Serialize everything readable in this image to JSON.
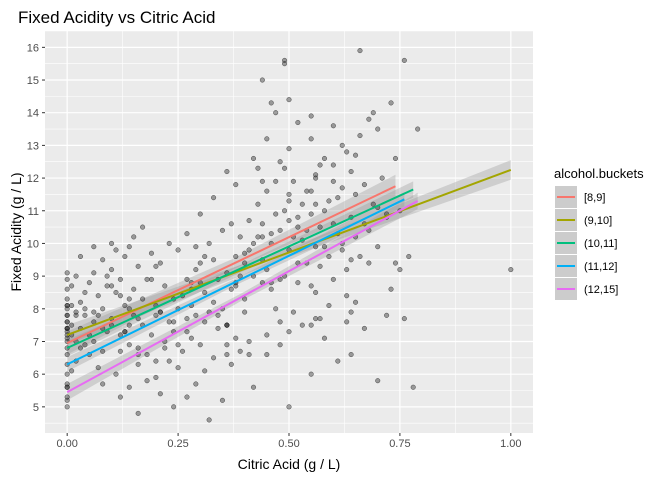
{
  "chart_data": {
    "type": "scatter",
    "title": "Fixed Acidity vs Citric Acid",
    "xlabel": "Citric Acid (g / L)",
    "ylabel": "Fixed Acidity (g / L)",
    "xlim": [
      -0.05,
      1.05
    ],
    "ylim": [
      4.2,
      16.5
    ],
    "x_ticks": [
      0.0,
      0.25,
      0.5,
      0.75,
      1.0
    ],
    "x_tick_labels": [
      "0.00",
      "0.25",
      "0.50",
      "0.75",
      "1.00"
    ],
    "y_ticks": [
      5,
      6,
      7,
      8,
      9,
      10,
      11,
      12,
      13,
      14,
      15,
      16
    ],
    "y_tick_labels": [
      "5",
      "6",
      "7",
      "8",
      "9",
      "10",
      "11",
      "12",
      "13",
      "14",
      "15",
      "16"
    ],
    "grid": true,
    "background": "#ebebeb",
    "point_color": "#333333",
    "legend": {
      "title": "alcohol.buckets",
      "position": "right"
    },
    "series": [
      {
        "name": "[8,9]",
        "color": "#F8766D",
        "fit": {
          "x": [
            0.0,
            0.74
          ],
          "y": [
            6.95,
            11.75
          ]
        },
        "band": 0.35
      },
      {
        "name": "(9,10]",
        "color": "#A3A500",
        "fit": {
          "x": [
            0.0,
            1.0
          ],
          "y": [
            7.2,
            12.25
          ]
        },
        "band": 0.3
      },
      {
        "name": "(10,11]",
        "color": "#00BF7D",
        "fit": {
          "x": [
            0.0,
            0.78
          ],
          "y": [
            6.8,
            11.65
          ]
        },
        "band": 0.25
      },
      {
        "name": "(11,12]",
        "color": "#00B0F6",
        "fit": {
          "x": [
            0.0,
            0.76
          ],
          "y": [
            6.3,
            11.35
          ]
        },
        "band": 0.22
      },
      {
        "name": "(12,15]",
        "color": "#E76BF3",
        "fit": {
          "x": [
            0.0,
            0.79
          ],
          "y": [
            5.45,
            11.3
          ]
        },
        "band": 0.25
      }
    ],
    "points": [
      [
        0.0,
        7.4
      ],
      [
        0.0,
        7.8
      ],
      [
        0.04,
        7.8
      ],
      [
        0.56,
        11.2
      ],
      [
        0.0,
        7.4
      ],
      [
        0.0,
        7.4
      ],
      [
        0.06,
        7.9
      ],
      [
        0.0,
        7.3
      ],
      [
        0.02,
        7.8
      ],
      [
        0.36,
        7.5
      ],
      [
        0.08,
        6.7
      ],
      [
        0.36,
        7.5
      ],
      [
        0.0,
        5.6
      ],
      [
        0.29,
        7.8
      ],
      [
        0.18,
        8.9
      ],
      [
        0.19,
        8.9
      ],
      [
        0.56,
        8.5
      ],
      [
        0.28,
        8.1
      ],
      [
        0.08,
        7.4
      ],
      [
        0.51,
        7.9
      ],
      [
        0.48,
        8.9
      ],
      [
        0.31,
        7.6
      ],
      [
        0.21,
        7.9
      ],
      [
        0.11,
        8.5
      ],
      [
        0.14,
        6.9
      ],
      [
        0.16,
        6.3
      ],
      [
        0.24,
        7.6
      ],
      [
        0.21,
        7.9
      ],
      [
        0.0,
        7.1
      ],
      [
        0.07,
        7.8
      ],
      [
        0.12,
        6.7
      ],
      [
        0.25,
        6.9
      ],
      [
        0.14,
        8.3
      ],
      [
        0.36,
        6.9
      ],
      [
        0.0,
        5.2
      ],
      [
        0.2,
        7.8
      ],
      [
        0.34,
        7.8
      ],
      [
        0.0,
        8.1
      ],
      [
        0.0,
        5.7
      ],
      [
        0.13,
        7.3
      ],
      [
        0.13,
        7.3
      ],
      [
        0.46,
        8.8
      ],
      [
        0.53,
        7.5
      ],
      [
        0.0,
        8.1
      ],
      [
        0.16,
        6.8
      ],
      [
        0.32,
        4.6
      ],
      [
        0.16,
        7.7
      ],
      [
        0.09,
        8.7
      ],
      [
        0.2,
        6.4
      ],
      [
        0.42,
        5.6
      ],
      [
        0.52,
        8.8
      ],
      [
        0.41,
        6.6
      ],
      [
        0.16,
        6.6
      ],
      [
        0.28,
        8.6
      ],
      [
        0.0,
        7.6
      ],
      [
        0.57,
        7.7
      ],
      [
        0.44,
        10.2
      ],
      [
        0.1,
        7.5
      ],
      [
        0.0,
        7.8
      ],
      [
        0.27,
        7.3
      ],
      [
        0.3,
        8.8
      ],
      [
        0.1,
        7.7
      ],
      [
        0.14,
        7.5
      ],
      [
        0.06,
        7.0
      ],
      [
        0.0,
        7.2
      ],
      [
        0.12,
        7.2
      ],
      [
        0.36,
        7.5
      ],
      [
        0.36,
        6.6
      ],
      [
        0.2,
        9.3
      ],
      [
        0.14,
        8.0
      ],
      [
        0.56,
        7.7
      ],
      [
        0.27,
        7.7
      ],
      [
        0.24,
        8.3
      ],
      [
        0.4,
        7.9
      ],
      [
        0.38,
        7.1
      ],
      [
        0.38,
        8.7
      ],
      [
        0.38,
        8.8
      ],
      [
        0.44,
        8.8
      ],
      [
        0.22,
        6.8
      ],
      [
        0.01,
        8.1
      ],
      [
        0.17,
        10.5
      ],
      [
        0.43,
        12.3
      ],
      [
        0.52,
        10.5
      ],
      [
        0.5,
        11.5
      ],
      [
        0.46,
        10.3
      ],
      [
        0.42,
        10.0
      ],
      [
        0.4,
        9.7
      ],
      [
        0.3,
        9.4
      ],
      [
        0.49,
        11.0
      ],
      [
        0.55,
        11.6
      ],
      [
        0.47,
        10.9
      ],
      [
        0.54,
        10.4
      ],
      [
        0.44,
        11.9
      ],
      [
        0.56,
        12.0
      ],
      [
        0.48,
        12.5
      ],
      [
        0.5,
        11.3
      ],
      [
        0.58,
        12.6
      ],
      [
        0.65,
        12.7
      ],
      [
        0.62,
        13.0
      ],
      [
        0.66,
        13.3
      ],
      [
        0.63,
        12.8
      ],
      [
        0.64,
        12.2
      ],
      [
        0.55,
        13.2
      ],
      [
        0.52,
        13.7
      ],
      [
        0.5,
        12.9
      ],
      [
        0.57,
        12.4
      ],
      [
        0.6,
        11.9
      ],
      [
        0.49,
        15.6
      ],
      [
        0.49,
        15.5
      ],
      [
        0.44,
        15.0
      ],
      [
        0.66,
        15.9
      ],
      [
        0.76,
        15.6
      ],
      [
        0.73,
        14.3
      ],
      [
        0.7,
        13.5
      ],
      [
        0.79,
        13.5
      ],
      [
        0.68,
        13.8
      ],
      [
        0.69,
        14.0
      ],
      [
        0.46,
        14.3
      ],
      [
        0.67,
        11.8
      ],
      [
        0.7,
        11.1
      ],
      [
        0.72,
        10.9
      ],
      [
        0.65,
        10.2
      ],
      [
        0.62,
        9.8
      ],
      [
        0.59,
        9.6
      ],
      [
        0.63,
        9.2
      ],
      [
        0.68,
        9.4
      ],
      [
        0.6,
        8.9
      ],
      [
        0.64,
        7.9
      ],
      [
        0.67,
        7.4
      ],
      [
        0.7,
        5.8
      ],
      [
        0.64,
        6.6
      ],
      [
        0.58,
        7.1
      ],
      [
        0.61,
        6.4
      ],
      [
        0.55,
        6.0
      ],
      [
        0.5,
        5.0
      ],
      [
        0.48,
        6.9
      ],
      [
        0.45,
        7.2
      ],
      [
        0.39,
        6.7
      ],
      [
        0.35,
        5.2
      ],
      [
        0.31,
        6.1
      ],
      [
        0.27,
        5.3
      ],
      [
        0.24,
        5.0
      ],
      [
        0.21,
        5.4
      ],
      [
        0.18,
        5.8
      ],
      [
        0.14,
        5.6
      ],
      [
        0.11,
        6.0
      ],
      [
        0.07,
        6.2
      ],
      [
        0.05,
        6.6
      ],
      [
        0.03,
        6.8
      ],
      [
        0.02,
        7.0
      ],
      [
        0.01,
        7.2
      ],
      [
        0.01,
        7.5
      ],
      [
        0.02,
        7.9
      ],
      [
        0.03,
        8.2
      ],
      [
        0.04,
        8.5
      ],
      [
        0.05,
        8.8
      ],
      [
        0.06,
        9.1
      ],
      [
        0.08,
        9.5
      ],
      [
        0.09,
        9.0
      ],
      [
        0.1,
        8.7
      ],
      [
        0.12,
        8.4
      ],
      [
        0.13,
        8.1
      ],
      [
        0.15,
        7.8
      ],
      [
        0.17,
        7.5
      ],
      [
        0.19,
        7.2
      ],
      [
        0.22,
        7.0
      ],
      [
        0.23,
        7.6
      ],
      [
        0.25,
        8.0
      ],
      [
        0.26,
        8.4
      ],
      [
        0.28,
        8.8
      ],
      [
        0.29,
        9.2
      ],
      [
        0.31,
        9.6
      ],
      [
        0.32,
        10.0
      ],
      [
        0.33,
        8.2
      ],
      [
        0.34,
        7.4
      ],
      [
        0.35,
        8.0
      ],
      [
        0.37,
        8.6
      ],
      [
        0.39,
        9.0
      ],
      [
        0.4,
        9.4
      ],
      [
        0.41,
        9.8
      ],
      [
        0.43,
        10.2
      ],
      [
        0.44,
        10.6
      ],
      [
        0.45,
        9.2
      ],
      [
        0.46,
        8.6
      ],
      [
        0.47,
        8.0
      ],
      [
        0.48,
        7.6
      ],
      [
        0.49,
        9.0
      ],
      [
        0.5,
        9.8
      ],
      [
        0.51,
        10.2
      ],
      [
        0.52,
        10.8
      ],
      [
        0.53,
        11.2
      ],
      [
        0.54,
        9.4
      ],
      [
        0.55,
        8.7
      ],
      [
        0.56,
        9.9
      ],
      [
        0.57,
        10.5
      ],
      [
        0.58,
        11.0
      ],
      [
        0.6,
        10.6
      ],
      [
        0.61,
        11.4
      ],
      [
        0.62,
        10.0
      ],
      [
        0.64,
        10.8
      ],
      [
        0.65,
        11.5
      ],
      [
        0.66,
        9.6
      ],
      [
        0.68,
        10.4
      ],
      [
        0.69,
        11.2
      ],
      [
        0.71,
        12.0
      ],
      [
        0.74,
        12.6
      ],
      [
        0.75,
        11.0
      ],
      [
        0.77,
        9.6
      ],
      [
        1.0,
        9.2
      ],
      [
        0.76,
        7.7
      ],
      [
        0.78,
        5.6
      ],
      [
        0.74,
        9.4
      ],
      [
        0.73,
        8.6
      ],
      [
        0.72,
        7.8
      ],
      [
        0.0,
        5.0
      ],
      [
        0.0,
        5.3
      ],
      [
        0.0,
        5.6
      ],
      [
        0.0,
        6.0
      ],
      [
        0.0,
        6.3
      ],
      [
        0.0,
        6.6
      ],
      [
        0.0,
        6.8
      ],
      [
        0.0,
        7.0
      ],
      [
        0.0,
        7.6
      ],
      [
        0.0,
        8.0
      ],
      [
        0.0,
        8.3
      ],
      [
        0.0,
        8.6
      ],
      [
        0.0,
        8.9
      ],
      [
        0.0,
        9.1
      ],
      [
        0.01,
        6.1
      ],
      [
        0.01,
        8.7
      ],
      [
        0.02,
        6.4
      ],
      [
        0.02,
        9.0
      ],
      [
        0.03,
        7.4
      ],
      [
        0.04,
        6.9
      ],
      [
        0.04,
        8.0
      ],
      [
        0.05,
        7.2
      ],
      [
        0.06,
        7.6
      ],
      [
        0.07,
        8.4
      ],
      [
        0.08,
        8.0
      ],
      [
        0.09,
        7.3
      ],
      [
        0.1,
        9.2
      ],
      [
        0.11,
        9.8
      ],
      [
        0.12,
        8.9
      ],
      [
        0.13,
        9.6
      ],
      [
        0.14,
        9.9
      ],
      [
        0.15,
        8.6
      ],
      [
        0.16,
        9.3
      ],
      [
        0.17,
        8.3
      ],
      [
        0.18,
        6.6
      ],
      [
        0.2,
        8.1
      ],
      [
        0.21,
        9.4
      ],
      [
        0.22,
        8.7
      ],
      [
        0.23,
        6.4
      ],
      [
        0.24,
        7.3
      ],
      [
        0.25,
        9.8
      ],
      [
        0.26,
        6.7
      ],
      [
        0.27,
        8.9
      ],
      [
        0.28,
        7.1
      ],
      [
        0.29,
        9.9
      ],
      [
        0.3,
        6.9
      ],
      [
        0.31,
        8.5
      ],
      [
        0.32,
        7.9
      ],
      [
        0.33,
        9.5
      ],
      [
        0.34,
        8.9
      ],
      [
        0.35,
        10.4
      ],
      [
        0.36,
        9.1
      ],
      [
        0.37,
        10.6
      ],
      [
        0.38,
        9.6
      ],
      [
        0.39,
        10.2
      ],
      [
        0.4,
        8.3
      ],
      [
        0.41,
        10.7
      ],
      [
        0.42,
        9.0
      ],
      [
        0.43,
        11.2
      ],
      [
        0.44,
        9.5
      ],
      [
        0.45,
        11.6
      ],
      [
        0.46,
        10.0
      ],
      [
        0.47,
        11.9
      ],
      [
        0.48,
        10.4
      ],
      [
        0.49,
        12.3
      ],
      [
        0.5,
        10.7
      ],
      [
        0.51,
        11.9
      ],
      [
        0.52,
        9.4
      ],
      [
        0.53,
        10.1
      ],
      [
        0.54,
        11.6
      ],
      [
        0.55,
        10.9
      ],
      [
        0.56,
        12.1
      ],
      [
        0.57,
        9.3
      ],
      [
        0.58,
        9.9
      ],
      [
        0.59,
        11.3
      ],
      [
        0.6,
        12.4
      ],
      [
        0.61,
        10.3
      ],
      [
        0.62,
        11.7
      ],
      [
        0.63,
        8.4
      ],
      [
        0.64,
        9.5
      ],
      [
        0.65,
        8.2
      ],
      [
        0.67,
        10.6
      ],
      [
        0.7,
        9.9
      ],
      [
        0.72,
        10.8
      ],
      [
        0.75,
        9.2
      ],
      [
        0.47,
        14.0
      ],
      [
        0.5,
        14.4
      ],
      [
        0.55,
        13.9
      ],
      [
        0.6,
        13.6
      ],
      [
        0.45,
        13.2
      ],
      [
        0.42,
        12.6
      ],
      [
        0.38,
        11.8
      ],
      [
        0.36,
        12.2
      ],
      [
        0.33,
        11.4
      ],
      [
        0.3,
        10.9
      ],
      [
        0.27,
        10.3
      ],
      [
        0.23,
        10.0
      ],
      [
        0.19,
        9.7
      ],
      [
        0.15,
        10.2
      ],
      [
        0.1,
        10.0
      ],
      [
        0.06,
        9.9
      ],
      [
        0.03,
        9.6
      ],
      [
        0.08,
        5.7
      ],
      [
        0.12,
        5.3
      ],
      [
        0.16,
        4.8
      ],
      [
        0.2,
        5.9
      ],
      [
        0.25,
        6.2
      ],
      [
        0.29,
        5.7
      ],
      [
        0.33,
        6.5
      ],
      [
        0.37,
        6.3
      ],
      [
        0.41,
        7.0
      ],
      [
        0.45,
        6.6
      ],
      [
        0.5,
        7.3
      ],
      [
        0.55,
        7.5
      ],
      [
        0.59,
        8.1
      ],
      [
        0.63,
        7.6
      ]
    ]
  }
}
